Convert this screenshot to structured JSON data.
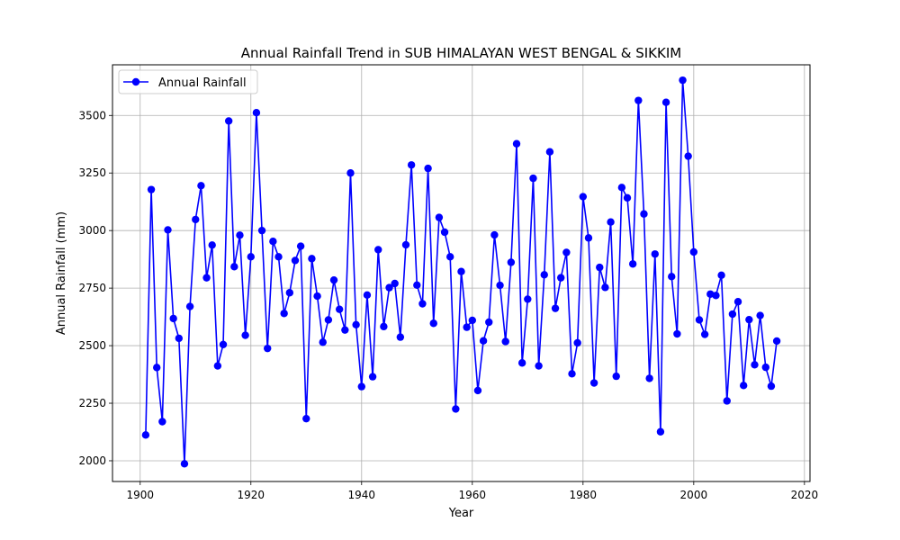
{
  "chart_data": {
    "type": "line",
    "title": "Annual Rainfall Trend in SUB HIMALAYAN WEST BENGAL & SIKKIM",
    "xlabel": "Year",
    "ylabel": "Annual Rainfall (mm)",
    "xlim": [
      1895,
      2021
    ],
    "ylim": [
      1910,
      3720
    ],
    "xticks": [
      1900,
      1920,
      1940,
      1960,
      1980,
      2000,
      2020
    ],
    "yticks": [
      2000,
      2250,
      2500,
      2750,
      3000,
      3250,
      3500
    ],
    "grid": true,
    "legend_position": "upper-left",
    "series": [
      {
        "name": "Annual Rainfall",
        "color": "#0000ff",
        "marker": "circle",
        "x": [
          1901,
          1902,
          1903,
          1904,
          1905,
          1906,
          1907,
          1908,
          1909,
          1910,
          1911,
          1912,
          1913,
          1914,
          1915,
          1916,
          1917,
          1918,
          1919,
          1920,
          1921,
          1922,
          1923,
          1924,
          1925,
          1926,
          1927,
          1928,
          1929,
          1930,
          1931,
          1932,
          1933,
          1934,
          1935,
          1936,
          1937,
          1938,
          1939,
          1940,
          1941,
          1942,
          1943,
          1944,
          1945,
          1946,
          1947,
          1948,
          1949,
          1950,
          1951,
          1952,
          1953,
          1954,
          1955,
          1956,
          1957,
          1958,
          1959,
          1960,
          1961,
          1962,
          1963,
          1964,
          1965,
          1966,
          1967,
          1968,
          1969,
          1970,
          1971,
          1972,
          1973,
          1974,
          1975,
          1976,
          1977,
          1978,
          1979,
          1980,
          1981,
          1982,
          1983,
          1984,
          1985,
          1986,
          1987,
          1988,
          1989,
          1990,
          1991,
          1992,
          1993,
          1994,
          1995,
          1996,
          1997,
          1998,
          1999,
          2000,
          2001,
          2002,
          2003,
          2004,
          2005,
          2006,
          2007,
          2008,
          2009,
          2010,
          2011,
          2012,
          2013,
          2014,
          2015
        ],
        "values": [
          2112,
          3178,
          2405,
          2170,
          3003,
          2618,
          2532,
          1987,
          2670,
          3048,
          3195,
          2795,
          2937,
          2412,
          2505,
          3476,
          2843,
          2980,
          2545,
          2886,
          3512,
          3000,
          2488,
          2953,
          2886,
          2640,
          2730,
          2870,
          2932,
          2183,
          2878,
          2715,
          2515,
          2612,
          2785,
          2658,
          2568,
          3250,
          2591,
          2322,
          2720,
          2365,
          2917,
          2583,
          2752,
          2770,
          2537,
          2938,
          3285,
          2763,
          2682,
          3270,
          2597,
          3057,
          2993,
          2886,
          2225,
          2822,
          2580,
          2610,
          2305,
          2521,
          2602,
          2981,
          2762,
          2518,
          2862,
          3377,
          2425,
          2702,
          3227,
          2412,
          2808,
          3342,
          2662,
          2795,
          2905,
          2378,
          2512,
          3147,
          2968,
          2338,
          2840,
          2753,
          3037,
          2367,
          3187,
          3142,
          2855,
          3565,
          3072,
          2358,
          2898,
          2126,
          3557,
          2800,
          2551,
          3653,
          3323,
          2907,
          2612,
          2549,
          2724,
          2718,
          2806,
          2260,
          2637,
          2691,
          2327,
          2613,
          2417,
          2631,
          2406,
          2324,
          2520
        ]
      }
    ]
  }
}
